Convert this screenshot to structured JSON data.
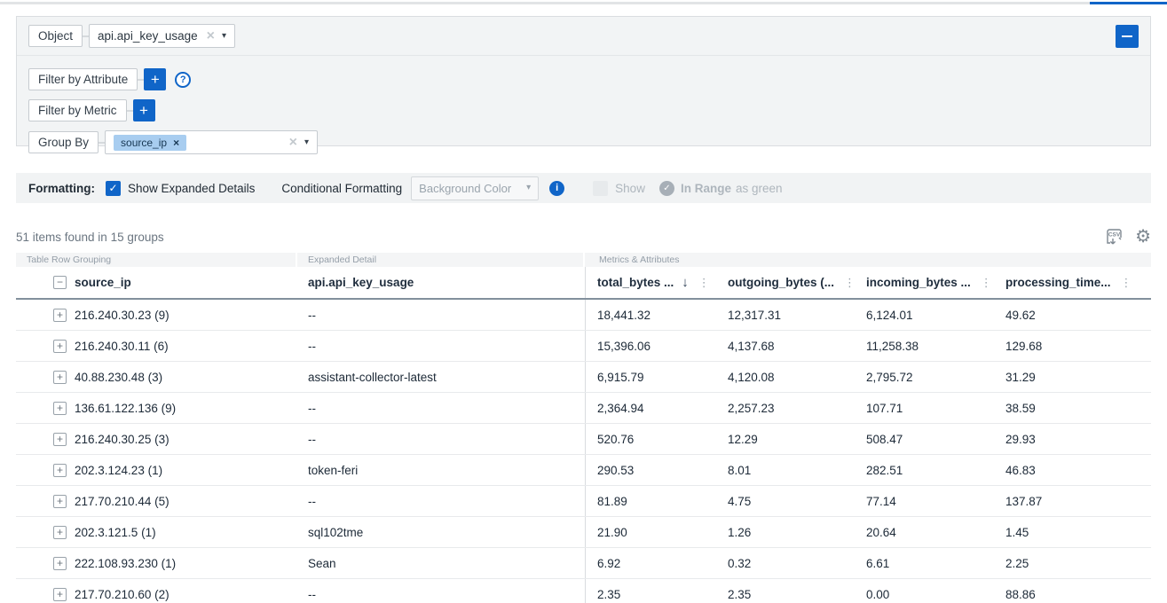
{
  "colors": {
    "accent": "#1065c8",
    "chip_bg": "#a8cdf0",
    "disabled_text": "#aeb6bd",
    "row_border": "#e8eaec"
  },
  "query_builder": {
    "object": {
      "label": "Object",
      "value": "api.api_key_usage"
    },
    "filter_by_attribute": {
      "label": "Filter by Attribute"
    },
    "filter_by_metric": {
      "label": "Filter by Metric"
    },
    "group_by": {
      "label": "Group By",
      "chips": [
        "source_ip"
      ]
    }
  },
  "formatting_bar": {
    "label": "Formatting:",
    "show_expanded_details_label": "Show Expanded Details",
    "show_expanded_details_checked": true,
    "conditional_formatting_label": "Conditional Formatting",
    "conditional_dropdown_value": "Background Color",
    "show_label": "Show",
    "show_checked": false,
    "in_range_label": "In Range",
    "as_green_label": "as green"
  },
  "results": {
    "summary": "51 items found in 15 groups"
  },
  "table": {
    "section_headers": {
      "grouping": "Table Row Grouping",
      "detail": "Expanded Detail",
      "metrics": "Metrics & Attributes"
    },
    "columns": {
      "group": "source_ip",
      "detail": "api.api_key_usage",
      "metrics": [
        "total_bytes ...",
        "outgoing_bytes (...",
        "incoming_bytes ...",
        "processing_time..."
      ],
      "sorted_column_index": 0,
      "sort_direction": "desc"
    },
    "rows": [
      {
        "group": "216.240.30.23 (9)",
        "detail": "--",
        "metrics": [
          "18,441.32",
          "12,317.31",
          "6,124.01",
          "49.62"
        ]
      },
      {
        "group": "216.240.30.11 (6)",
        "detail": "--",
        "metrics": [
          "15,396.06",
          "4,137.68",
          "11,258.38",
          "129.68"
        ]
      },
      {
        "group": "40.88.230.48 (3)",
        "detail": "assistant-collector-latest",
        "metrics": [
          "6,915.79",
          "4,120.08",
          "2,795.72",
          "31.29"
        ]
      },
      {
        "group": "136.61.122.136 (9)",
        "detail": "--",
        "metrics": [
          "2,364.94",
          "2,257.23",
          "107.71",
          "38.59"
        ]
      },
      {
        "group": "216.240.30.25 (3)",
        "detail": "--",
        "metrics": [
          "520.76",
          "12.29",
          "508.47",
          "29.93"
        ]
      },
      {
        "group": "202.3.124.23 (1)",
        "detail": "token-feri",
        "metrics": [
          "290.53",
          "8.01",
          "282.51",
          "46.83"
        ]
      },
      {
        "group": "217.70.210.44 (5)",
        "detail": "--",
        "metrics": [
          "81.89",
          "4.75",
          "77.14",
          "137.87"
        ]
      },
      {
        "group": "202.3.121.5 (1)",
        "detail": "sql102tme",
        "metrics": [
          "21.90",
          "1.26",
          "20.64",
          "1.45"
        ]
      },
      {
        "group": "222.108.93.230 (1)",
        "detail": "Sean",
        "metrics": [
          "6.92",
          "0.32",
          "6.61",
          "2.25"
        ]
      },
      {
        "group": "217.70.210.60 (2)",
        "detail": "--",
        "metrics": [
          "2.35",
          "2.35",
          "0.00",
          "88.86"
        ]
      }
    ]
  }
}
